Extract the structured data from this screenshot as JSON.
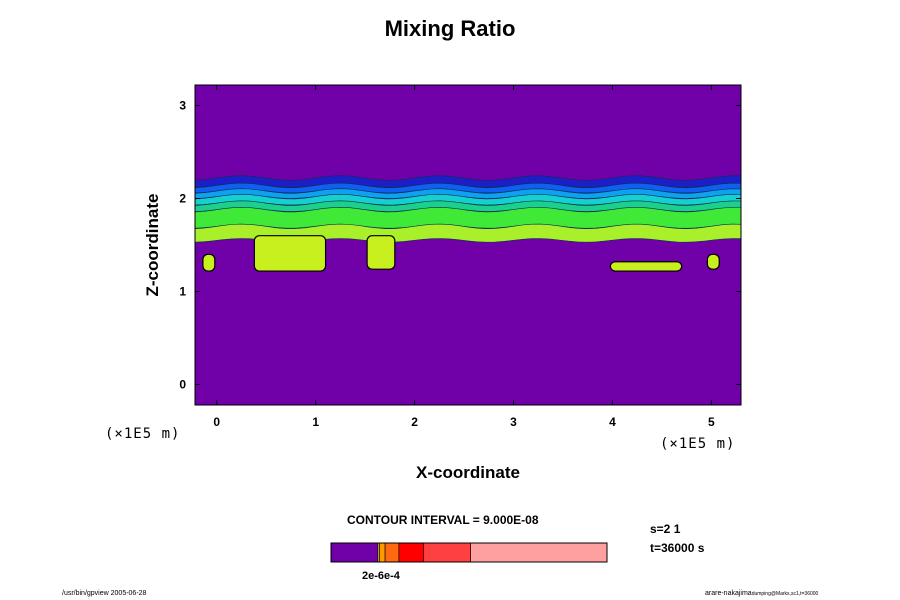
{
  "chart_data": {
    "type": "heatmap",
    "title": "Mixing Ratio",
    "xlabel": "X-coordinate",
    "ylabel": "Z-coordinate",
    "x_unit": "(×1E5 m)",
    "xlim": [
      -0.22,
      5.3
    ],
    "ylim": [
      -0.22,
      3.22
    ],
    "x_ticks": [
      0,
      1,
      2,
      3,
      4,
      5
    ],
    "y_ticks": [
      0,
      1,
      2,
      3
    ],
    "contour_interval_label": "CONTOUR INTERVAL = 9.000E-08",
    "background_value_color": "#7000a8",
    "layers": [
      {
        "name": "dark-blue",
        "color": "#1e1ec8",
        "z_top": 2.22,
        "z_bottom": 2.14
      },
      {
        "name": "blue",
        "color": "#0f5ff0",
        "z_top": 2.14,
        "z_bottom": 2.08
      },
      {
        "name": "sky-blue",
        "color": "#10a0f0",
        "z_top": 2.08,
        "z_bottom": 2.02
      },
      {
        "name": "cyan",
        "color": "#16d0d0",
        "z_top": 2.02,
        "z_bottom": 1.95
      },
      {
        "name": "teal-green",
        "color": "#1cd08c",
        "z_top": 1.95,
        "z_bottom": 1.88
      },
      {
        "name": "green",
        "color": "#40e838",
        "z_top": 1.88,
        "z_bottom": 1.7
      },
      {
        "name": "lime",
        "color": "#aaf02a",
        "z_top": 1.7,
        "z_bottom": 1.55
      }
    ],
    "blobs": [
      {
        "x": -0.08,
        "z_top": 1.4,
        "z_bottom": 1.22,
        "width": 0.12,
        "color": "#c8f01e"
      },
      {
        "x": 0.74,
        "z_top": 1.6,
        "z_bottom": 1.22,
        "width": 0.72,
        "color": "#c8f01e"
      },
      {
        "x": 1.66,
        "z_top": 1.6,
        "z_bottom": 1.24,
        "width": 0.28,
        "color": "#c8f01e"
      },
      {
        "x": 4.34,
        "z_top": 1.32,
        "z_bottom": 1.22,
        "width": 0.72,
        "color": "#c8f01e"
      },
      {
        "x": 5.02,
        "z_top": 1.4,
        "z_bottom": 1.24,
        "width": 0.12,
        "color": "#c8f01e"
      }
    ],
    "colorbar": {
      "colors": [
        "#7000a8",
        "#e8c800",
        "#ff9a00",
        "#ff6a10",
        "#ff0000",
        "#ff4040",
        "#ffa0a0"
      ],
      "fractions": [
        0.17,
        0.006,
        0.02,
        0.05,
        0.09,
        0.17,
        0.494
      ],
      "labels": "2e-6e-4"
    },
    "step_label": "s=2 1",
    "time_label": "t=36000 s"
  },
  "footer": {
    "left": "/usr/bin/gpview 2005-06-28",
    "right_main": "arare-nakajima",
    "right_sub": "dumping@Marks,sc1,t=36000"
  }
}
